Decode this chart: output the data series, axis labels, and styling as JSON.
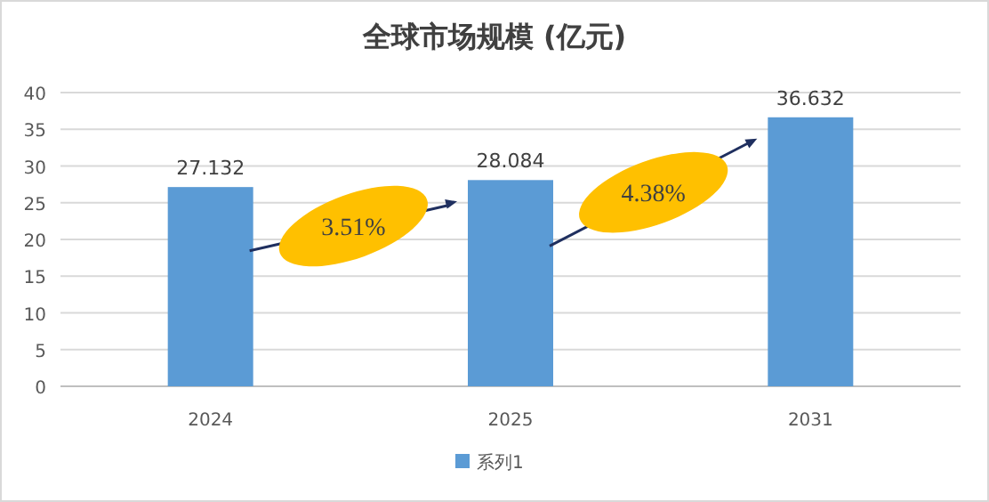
{
  "chart_data": {
    "type": "bar",
    "title": "全球市场规模 (亿元)",
    "categories": [
      "2024",
      "2025",
      "2031"
    ],
    "series": [
      {
        "name": "系列1",
        "color": "#5b9bd5",
        "values": [
          27.132,
          28.084,
          36.632
        ]
      }
    ],
    "ylim": [
      0,
      40
    ],
    "yticks": [
      0,
      5,
      10,
      15,
      20,
      25,
      30,
      35,
      40
    ],
    "grid": "y",
    "legend": "bottom",
    "data_labels": true,
    "annotations": [
      "3.51%",
      "4.38%"
    ]
  }
}
